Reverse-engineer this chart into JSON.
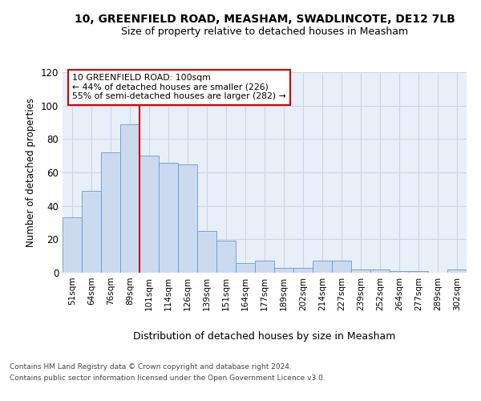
{
  "title1": "10, GREENFIELD ROAD, MEASHAM, SWADLINCOTE, DE12 7LB",
  "title2": "Size of property relative to detached houses in Measham",
  "xlabel": "Distribution of detached houses by size in Measham",
  "ylabel": "Number of detached properties",
  "bar_labels": [
    "51sqm",
    "64sqm",
    "76sqm",
    "89sqm",
    "101sqm",
    "114sqm",
    "126sqm",
    "139sqm",
    "151sqm",
    "164sqm",
    "177sqm",
    "189sqm",
    "202sqm",
    "214sqm",
    "227sqm",
    "239sqm",
    "252sqm",
    "264sqm",
    "277sqm",
    "289sqm",
    "302sqm"
  ],
  "bar_values": [
    33,
    49,
    72,
    89,
    70,
    66,
    65,
    25,
    19,
    6,
    7,
    3,
    3,
    7,
    7,
    2,
    2,
    1,
    1,
    0,
    2
  ],
  "bar_color": "#ccdaf0",
  "bar_edge_color": "#6699cc",
  "vline_x_idx": 4,
  "vline_color": "#cc0000",
  "annotation_text": "10 GREENFIELD ROAD: 100sqm\n← 44% of detached houses are smaller (226)\n55% of semi-detached houses are larger (282) →",
  "annotation_box_color": "#ffffff",
  "annotation_box_edge": "#cc0000",
  "ylim": [
    0,
    120
  ],
  "yticks": [
    0,
    20,
    40,
    60,
    80,
    100,
    120
  ],
  "grid_color": "#c8d4e8",
  "bg_color": "#e8eff8",
  "footnote1": "Contains HM Land Registry data © Crown copyright and database right 2024.",
  "footnote2": "Contains public sector information licensed under the Open Government Licence v3.0."
}
